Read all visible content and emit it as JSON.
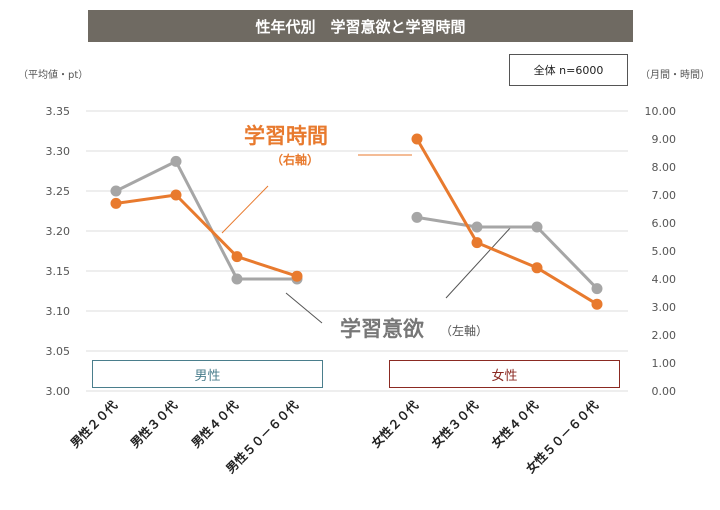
{
  "header": {
    "title": "性年代別　学習意欲と学習時間",
    "left_unit": "（平均値・pt）",
    "right_unit": "（月間・時間）",
    "sample": "全体 n=6000"
  },
  "groups": {
    "male": "男性",
    "female": "女性"
  },
  "annotations": {
    "time_label": "学習時間",
    "time_axis_note": "（右軸）",
    "will_label": "学習意欲",
    "will_axis_note": "（左軸）"
  },
  "colors": {
    "time": "#e87a2e",
    "will": "#a6a6a6",
    "title_bg": "#6f6a62",
    "male": "#4a7e8c",
    "female": "#8b2a22"
  },
  "chart_data": {
    "type": "line",
    "title": "性年代別　学習意欲と学習時間",
    "categories": [
      "男性２０代",
      "男性３０代",
      "男性４０代",
      "男性５０－６０代",
      "女性２０代",
      "女性３０代",
      "女性４０代",
      "女性５０－６０代"
    ],
    "groups": [
      {
        "label": "男性",
        "categories": [
          "男性２０代",
          "男性３０代",
          "男性４０代",
          "男性５０－６０代"
        ]
      },
      {
        "label": "女性",
        "categories": [
          "女性２０代",
          "女性３０代",
          "女性４０代",
          "女性５０－６０代"
        ]
      }
    ],
    "left_axis": {
      "label": "（平均値・pt）",
      "ylim": [
        3.0,
        3.35
      ],
      "ticks": [
        "3.00",
        "3.05",
        "3.10",
        "3.15",
        "3.20",
        "3.25",
        "3.30",
        "3.35"
      ]
    },
    "right_axis": {
      "label": "（月間・時間）",
      "ylim": [
        0,
        10
      ],
      "ticks": [
        "0.00",
        "1.00",
        "2.00",
        "3.00",
        "4.00",
        "5.00",
        "6.00",
        "7.00",
        "8.00",
        "9.00",
        "10.00"
      ]
    },
    "series": [
      {
        "name": "学習意欲",
        "axis": "left",
        "color": "#a6a6a6",
        "values": [
          3.25,
          3.287,
          3.14,
          3.14,
          3.217,
          3.205,
          3.205,
          3.128
        ]
      },
      {
        "name": "学習時間",
        "axis": "right",
        "color": "#e87a2e",
        "values": [
          6.7,
          7.0,
          4.8,
          4.1,
          9.0,
          5.3,
          4.4,
          3.1
        ]
      }
    ],
    "grid": true
  }
}
